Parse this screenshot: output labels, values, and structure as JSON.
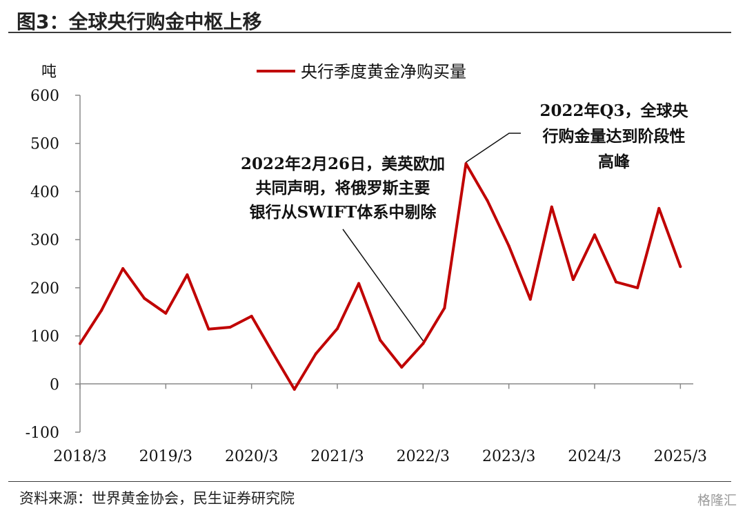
{
  "title": "图3：全球央行购金中枢上移",
  "source": "资料来源：世界黄金协会，民生证券研究院",
  "watermark": "格隆汇",
  "chart_data": {
    "type": "line",
    "unit_label": "吨",
    "ylim": [
      -100,
      600
    ],
    "yticks": [
      -100,
      0,
      100,
      200,
      300,
      400,
      500,
      600
    ],
    "xtick_labels": [
      "2018/3",
      "2019/3",
      "2020/3",
      "2021/3",
      "2022/3",
      "2023/3",
      "2024/3",
      "2025/3"
    ],
    "legend": "央行季度黄金净购买量",
    "legend_position": "top-center",
    "grid": false,
    "series": [
      {
        "name": "央行季度黄金净购买量",
        "color": "#C00000",
        "x": [
          "2018/3",
          "2018/6",
          "2018/9",
          "2018/12",
          "2019/3",
          "2019/6",
          "2019/9",
          "2019/12",
          "2020/3",
          "2020/6",
          "2020/9",
          "2020/12",
          "2021/3",
          "2021/6",
          "2021/9",
          "2021/12",
          "2022/3",
          "2022/6",
          "2022/9",
          "2022/12",
          "2023/3",
          "2023/6",
          "2023/9",
          "2023/12",
          "2024/3",
          "2024/6",
          "2024/9",
          "2024/12",
          "2025/3"
        ],
        "values": [
          84,
          153,
          240,
          178,
          147,
          227,
          114,
          118,
          141,
          64,
          -11,
          63,
          115,
          209,
          91,
          35,
          84,
          158,
          458,
          381,
          287,
          176,
          368,
          217,
          310,
          212,
          200,
          365,
          244
        ]
      }
    ],
    "annotations": [
      {
        "lines": [
          "2022年2月26日，美英欧加",
          "共同声明，将俄罗斯主要",
          "银行从SWIFT体系中剔除"
        ],
        "target_x": "2022/3"
      },
      {
        "lines": [
          "2022年Q3，全球央",
          "行购金量达到阶段性",
          "高峰"
        ],
        "target_x": "2022/9"
      }
    ]
  }
}
